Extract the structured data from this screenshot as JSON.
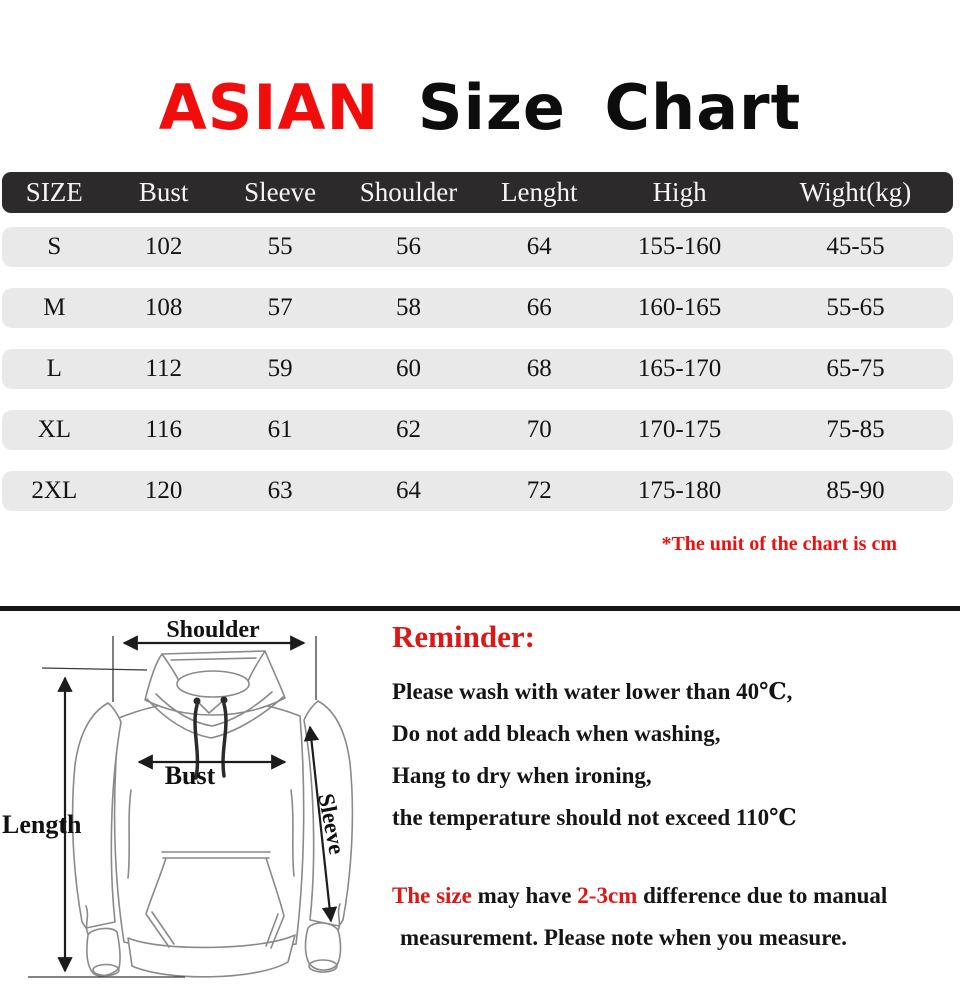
{
  "title": {
    "highlight": "ASIAN",
    "rest": "Size Chart"
  },
  "table": {
    "headers": [
      "SIZE",
      "Bust",
      "Sleeve",
      "Shoulder",
      "Lenght",
      "High",
      "Wight(kg)"
    ],
    "rows": [
      [
        "S",
        "102",
        "55",
        "56",
        "64",
        "155-160",
        "45-55"
      ],
      [
        "M",
        "108",
        "57",
        "58",
        "66",
        "160-165",
        "55-65"
      ],
      [
        "L",
        "112",
        "59",
        "60",
        "68",
        "165-170",
        "65-75"
      ],
      [
        "XL",
        "116",
        "61",
        "62",
        "70",
        "170-175",
        "75-85"
      ],
      [
        "2XL",
        "120",
        "63",
        "64",
        "72",
        "175-180",
        "85-90"
      ]
    ],
    "unit_note": "*The unit of the chart is cm"
  },
  "diagram": {
    "labels": {
      "shoulder": "Shoulder",
      "bust": "Bust",
      "length": "Length",
      "sleeve": "Sleeve"
    }
  },
  "reminder": {
    "heading": "Reminder:",
    "lines": [
      "Please wash with water lower than 40℃,",
      "Do not add bleach when washing,",
      "Hang to dry when ironing,",
      "the temperature should not exceed 110℃"
    ],
    "note_segments": [
      {
        "text": "The size",
        "red": true
      },
      {
        "text": " may have ",
        "red": false
      },
      {
        "text": "2-3cm",
        "red": true
      },
      {
        "text": " difference due to manual",
        "red": false
      }
    ],
    "note_line2": "measurement. Please note when you measure."
  },
  "colors": {
    "accent_red": "#f20d0d",
    "reminder_red": "#dd1616",
    "header_bg": "#2d2a2b",
    "row_bg": "#eae9e9",
    "divider": "#151515",
    "text": "#141414"
  }
}
